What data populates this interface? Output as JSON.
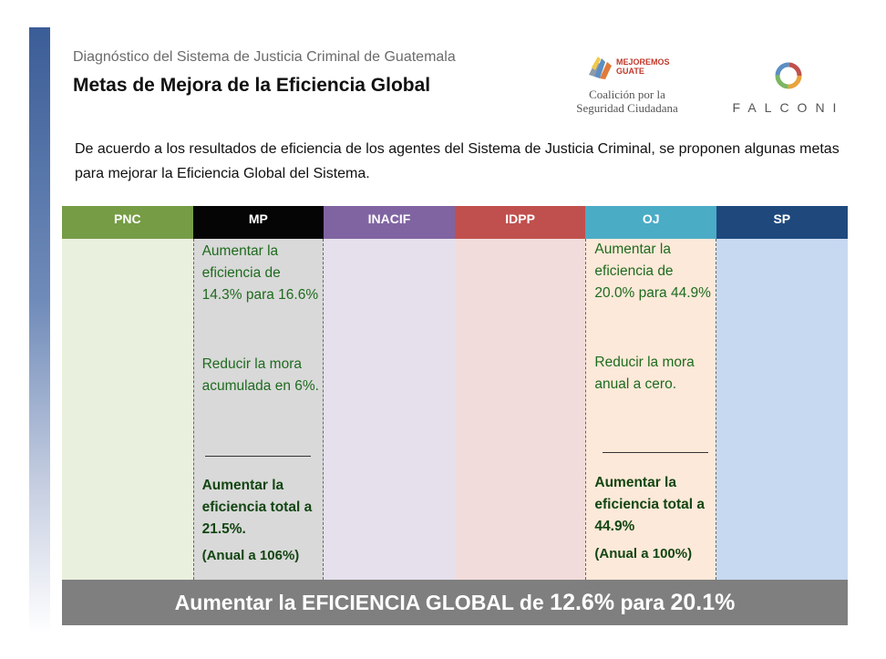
{
  "header": {
    "subtitle": "Diagnóstico del Sistema de Justicia Criminal de Guatemala",
    "title": "Metas de Mejora de la Eficiencia Global",
    "intro": "De acuerdo a los resultados de eficiencia de los agentes del Sistema de Justicia Criminal, se proponen algunas metas para mejorar la Eficiencia Global del Sistema."
  },
  "logos": {
    "mejoremos_text": "MEJOREMOS\nGUATE",
    "coalicion_line1": "Coalición por la",
    "coalicion_line2": "Seguridad Ciudadana",
    "falconi_text": "FALCONI"
  },
  "columns": {
    "pnc": {
      "label": "PNC",
      "color": "#769c45"
    },
    "mp": {
      "label": "MP",
      "color": "#050505",
      "goal1": "Aumentar la eficiencia de 14.3% para 16.6%",
      "goal2": "Reducir la mora acumulada en 6%.",
      "total": "Aumentar la eficiencia total a 21.5%.",
      "annual": "(Anual a 106%)"
    },
    "inacif": {
      "label": "INACIF",
      "color": "#8064a2"
    },
    "idpp": {
      "label": "IDPP",
      "color": "#c0504d"
    },
    "oj": {
      "label": "OJ",
      "color": "#4bacc6",
      "goal1": "Aumentar la eficiencia de 20.0% para 44.9%",
      "goal2": "Reducir la mora anual a cero.",
      "total": "Aumentar la eficiencia total a 44.9%",
      "annual": "(Anual a 100%)"
    },
    "sp": {
      "label": "SP",
      "color": "#1f497d"
    }
  },
  "banner": {
    "text_part1": "Aumentar la EFICIENCIA GLOBAL de ",
    "value_from": "12.6%",
    "text_part2": " para ",
    "value_to": "20.1%"
  }
}
